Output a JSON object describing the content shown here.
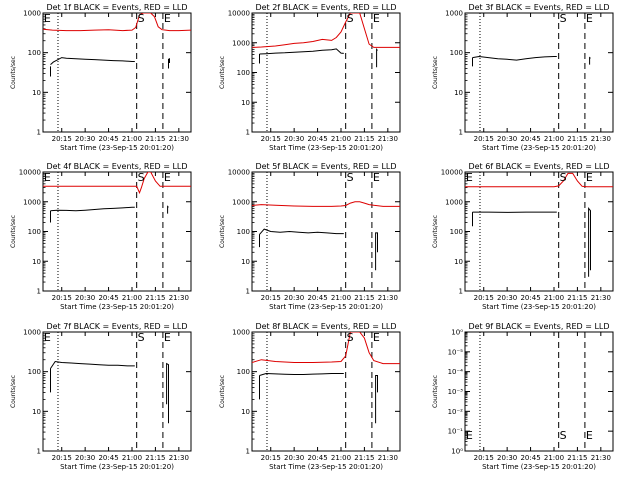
{
  "figure": {
    "background": "#ffffff",
    "axis_color": "#000000"
  },
  "chart_data": [
    {
      "type": "line",
      "title": "Det 1f BLACK = Events, RED = LLD",
      "xlabel": "Start Time (23-Sep-15 20:01:20)",
      "ylabel": "Counts/sec",
      "yscale": "log",
      "ylim": [
        1,
        1000
      ],
      "yticks": [
        "1",
        "10",
        "100",
        "1000"
      ],
      "xlim": [
        20.05,
        21.63
      ],
      "xticks": [
        "20:15",
        "20:30",
        "20:45",
        "21:00",
        "21:15",
        "21:30"
      ],
      "markers": {
        "dotted": [
          20.21
        ],
        "dashed": [
          21.05,
          21.33
        ]
      },
      "annotations": [
        {
          "text": "E",
          "x": 20.06
        },
        {
          "text": "S",
          "x": 21.06
        },
        {
          "text": "E",
          "x": 21.34
        }
      ],
      "series": [
        {
          "color": "#dd0000",
          "x": [
            20.05,
            20.15,
            20.3,
            20.45,
            20.6,
            20.75,
            20.9,
            21.0,
            21.04,
            21.08,
            21.12,
            21.16,
            21.2,
            21.24,
            21.28,
            21.32,
            21.36,
            21.4,
            21.5,
            21.63
          ],
          "y": [
            390,
            370,
            360,
            360,
            370,
            380,
            360,
            370,
            430,
            900,
            1000,
            1000,
            1000,
            800,
            450,
            380,
            370,
            360,
            360,
            370
          ]
        },
        {
          "color": "#000000",
          "x": [
            20.13,
            20.13
          ],
          "y": [
            25,
            45
          ]
        },
        {
          "color": "#000000",
          "x": [
            20.13,
            20.16,
            20.2,
            20.25,
            20.3,
            20.4,
            20.5,
            20.6,
            20.7,
            20.8,
            20.9,
            21.0,
            21.03
          ],
          "y": [
            50,
            58,
            65,
            75,
            72,
            70,
            68,
            67,
            65,
            63,
            62,
            60,
            60
          ]
        },
        {
          "color": "#000000",
          "x": [
            21.39,
            21.39,
            21.4,
            21.4
          ],
          "y": [
            40,
            68,
            70,
            55
          ]
        }
      ]
    },
    {
      "type": "line",
      "title": "Det 2f BLACK = Events, RED = LLD",
      "xlabel": "Start Time (23-Sep-15 20:01:20)",
      "ylabel": "Counts/sec",
      "yscale": "log",
      "ylim": [
        1,
        10000
      ],
      "yticks": [
        "1",
        "10",
        "100",
        "1000",
        "10000"
      ],
      "xlim": [
        20.05,
        21.63
      ],
      "xticks": [
        "20:15",
        "20:30",
        "20:45",
        "21:00",
        "21:15",
        "21:30"
      ],
      "markers": {
        "dotted": [
          20.21
        ],
        "dashed": [
          21.05,
          21.33
        ]
      },
      "annotations": [
        {
          "text": "S",
          "x": 21.06
        },
        {
          "text": "E",
          "x": 21.34
        }
      ],
      "series": [
        {
          "color": "#dd0000",
          "x": [
            20.05,
            20.15,
            20.3,
            20.4,
            20.5,
            20.6,
            20.7,
            20.8,
            20.9,
            20.95,
            21.0,
            21.05,
            21.1,
            21.15,
            21.2,
            21.25,
            21.3,
            21.35,
            21.45,
            21.63
          ],
          "y": [
            700,
            720,
            780,
            850,
            950,
            1000,
            1100,
            1300,
            1200,
            1500,
            2300,
            5000,
            10000,
            10000,
            10000,
            3000,
            900,
            700,
            700,
            700
          ]
        },
        {
          "color": "#000000",
          "x": [
            20.13,
            20.13
          ],
          "y": [
            200,
            420
          ]
        },
        {
          "color": "#000000",
          "x": [
            20.13,
            20.2,
            20.3,
            20.4,
            20.5,
            20.6,
            20.7,
            20.8,
            20.9,
            20.95,
            21.0,
            21.03
          ],
          "y": [
            420,
            430,
            450,
            460,
            480,
            500,
            520,
            560,
            580,
            620,
            450,
            440
          ]
        },
        {
          "color": "#000000",
          "x": [
            21.38,
            21.38,
            21.39
          ],
          "y": [
            150,
            600,
            550
          ]
        }
      ]
    },
    {
      "type": "line",
      "title": "Det 3f BLACK = Events, RED = LLD",
      "xlabel": "Start Time (23-Sep-15 20:01:20)",
      "ylabel": "Counts/sec",
      "yscale": "log",
      "ylim": [
        1,
        1000
      ],
      "yticks": [
        "1",
        "10",
        "100",
        "1000"
      ],
      "xlim": [
        20.05,
        21.63
      ],
      "xticks": [
        "20:15",
        "20:30",
        "20:45",
        "21:00",
        "21:15",
        "21:30"
      ],
      "markers": {
        "dotted": [
          20.21
        ],
        "dashed": [
          21.05,
          21.33
        ]
      },
      "annotations": [
        {
          "text": "S",
          "x": 21.06
        },
        {
          "text": "E",
          "x": 21.34
        }
      ],
      "series": [
        {
          "color": "#000000",
          "x": [
            20.13,
            20.13
          ],
          "y": [
            45,
            75
          ]
        },
        {
          "color": "#000000",
          "x": [
            20.13,
            20.2,
            20.3,
            20.4,
            20.5,
            20.6,
            20.7,
            20.8,
            20.9,
            21.0,
            21.03
          ],
          "y": [
            75,
            80,
            75,
            70,
            68,
            65,
            70,
            75,
            78,
            80,
            80
          ]
        },
        {
          "color": "#000000",
          "x": [
            21.38,
            21.38,
            21.39
          ],
          "y": [
            50,
            75,
            72
          ]
        }
      ]
    },
    {
      "type": "line",
      "title": "Det 4f BLACK = Events, RED = LLD",
      "xlabel": "Start Time (23-Sep-15 20:01:20)",
      "ylabel": "Counts/sec",
      "yscale": "log",
      "ylim": [
        1,
        10000
      ],
      "yticks": [
        "1",
        "10",
        "100",
        "1000",
        "10000"
      ],
      "xlim": [
        20.05,
        21.63
      ],
      "xticks": [
        "20:15",
        "20:30",
        "20:45",
        "21:00",
        "21:15",
        "21:30"
      ],
      "markers": {
        "dotted": [
          20.21
        ],
        "dashed": [
          21.05,
          21.33
        ]
      },
      "annotations": [
        {
          "text": "E",
          "x": 20.06
        },
        {
          "text": "S",
          "x": 21.06
        },
        {
          "text": "E",
          "x": 21.34
        }
      ],
      "series": [
        {
          "color": "#dd0000",
          "x": [
            20.05,
            20.3,
            20.6,
            20.9,
            21.0,
            21.05,
            21.08,
            21.1,
            21.13,
            21.17,
            21.2,
            21.25,
            21.3,
            21.4,
            21.63
          ],
          "y": [
            3300,
            3300,
            3300,
            3300,
            3300,
            3300,
            2000,
            3000,
            6000,
            10000,
            10000,
            5000,
            3300,
            3300,
            3300
          ]
        },
        {
          "color": "#000000",
          "x": [
            20.13,
            20.13
          ],
          "y": [
            200,
            500
          ]
        },
        {
          "color": "#000000",
          "x": [
            20.13,
            20.2,
            20.3,
            20.4,
            20.5,
            20.6,
            20.7,
            20.8,
            20.9,
            21.0,
            21.03
          ],
          "y": [
            500,
            520,
            510,
            500,
            520,
            550,
            580,
            600,
            620,
            650,
            650
          ]
        },
        {
          "color": "#000000",
          "x": [
            21.38,
            21.38,
            21.39
          ],
          "y": [
            400,
            700,
            650
          ]
        }
      ]
    },
    {
      "type": "line",
      "title": "Det 5f BLACK = Events, RED = LLD",
      "xlabel": "Start Time (23-Sep-15 20:01:20)",
      "ylabel": "Counts/sec",
      "yscale": "log",
      "ylim": [
        1,
        10000
      ],
      "yticks": [
        "1",
        "10",
        "100",
        "1000",
        "10000"
      ],
      "xlim": [
        20.05,
        21.63
      ],
      "xticks": [
        "20:15",
        "20:30",
        "20:45",
        "21:00",
        "21:15",
        "21:30"
      ],
      "markers": {
        "dotted": [
          20.21
        ],
        "dashed": [
          21.05,
          21.33
        ]
      },
      "annotations": [
        {
          "text": "S",
          "x": 21.06
        },
        {
          "text": "E",
          "x": 21.34
        }
      ],
      "series": [
        {
          "color": "#dd0000",
          "x": [
            20.05,
            20.15,
            20.3,
            20.5,
            20.7,
            20.9,
            21.0,
            21.05,
            21.1,
            21.15,
            21.2,
            21.25,
            21.3,
            21.35,
            21.45,
            21.63
          ],
          "y": [
            750,
            800,
            760,
            720,
            700,
            700,
            720,
            750,
            900,
            1000,
            1000,
            900,
            800,
            760,
            700,
            700
          ]
        },
        {
          "color": "#000000",
          "x": [
            20.13,
            20.13
          ],
          "y": [
            30,
            80
          ]
        },
        {
          "color": "#000000",
          "x": [
            20.13,
            20.18,
            20.25,
            20.35,
            20.45,
            20.55,
            20.65,
            20.75,
            20.85,
            20.95,
            21.03
          ],
          "y": [
            80,
            120,
            100,
            95,
            100,
            95,
            90,
            95,
            90,
            85,
            85
          ]
        },
        {
          "color": "#000000",
          "x": [
            21.37,
            21.37,
            21.39,
            21.39
          ],
          "y": [
            5,
            90,
            90,
            20
          ]
        }
      ]
    },
    {
      "type": "line",
      "title": "Det 6f BLACK = Events, RED = LLD",
      "xlabel": "Start Time (23-Sep-15 20:01:20)",
      "ylabel": "Counts/sec",
      "yscale": "log",
      "ylim": [
        1,
        10000
      ],
      "yticks": [
        "1",
        "10",
        "100",
        "1000",
        "10000"
      ],
      "xlim": [
        20.05,
        21.63
      ],
      "xticks": [
        "20:15",
        "20:30",
        "20:45",
        "21:00",
        "21:15",
        "21:30"
      ],
      "markers": {
        "dotted": [
          20.21
        ],
        "dashed": [
          21.05,
          21.33
        ]
      },
      "annotations": [
        {
          "text": "E",
          "x": 20.06
        },
        {
          "text": "S",
          "x": 21.06
        },
        {
          "text": "E",
          "x": 21.34
        }
      ],
      "series": [
        {
          "color": "#dd0000",
          "x": [
            20.05,
            20.5,
            21.0,
            21.05,
            21.1,
            21.15,
            21.2,
            21.25,
            21.3,
            21.35,
            21.63
          ],
          "y": [
            3200,
            3200,
            3200,
            3400,
            5000,
            9000,
            9000,
            5000,
            3300,
            3200,
            3200
          ]
        },
        {
          "color": "#000000",
          "x": [
            20.13,
            20.13
          ],
          "y": [
            150,
            450
          ]
        },
        {
          "color": "#000000",
          "x": [
            20.13,
            20.3,
            20.5,
            20.7,
            20.9,
            21.03
          ],
          "y": [
            450,
            450,
            440,
            450,
            450,
            450
          ]
        },
        {
          "color": "#000000",
          "x": [
            21.37,
            21.37,
            21.39,
            21.39
          ],
          "y": [
            3,
            600,
            500,
            5
          ]
        }
      ]
    },
    {
      "type": "line",
      "title": "Det 7f BLACK = Events, RED = LLD",
      "xlabel": "Start Time (23-Sep-15 20:01:20)",
      "ylabel": "Counts/sec",
      "yscale": "log",
      "ylim": [
        1,
        1000
      ],
      "yticks": [
        "1",
        "10",
        "100",
        "1000"
      ],
      "xlim": [
        20.05,
        21.63
      ],
      "xticks": [
        "20:15",
        "20:30",
        "20:45",
        "21:00",
        "21:15",
        "21:30"
      ],
      "markers": {
        "dotted": [
          20.21
        ],
        "dashed": [
          21.05,
          21.33
        ]
      },
      "annotations": [
        {
          "text": "E",
          "x": 20.06
        },
        {
          "text": "S",
          "x": 21.06
        },
        {
          "text": "E",
          "x": 21.34
        }
      ],
      "series": [
        {
          "color": "#000000",
          "x": [
            20.13,
            20.13
          ],
          "y": [
            30,
            120
          ]
        },
        {
          "color": "#000000",
          "x": [
            20.13,
            20.18,
            20.25,
            20.35,
            20.45,
            20.55,
            20.65,
            20.75,
            20.85,
            20.95,
            21.03
          ],
          "y": [
            120,
            180,
            170,
            165,
            160,
            155,
            150,
            145,
            145,
            140,
            140
          ]
        },
        {
          "color": "#000000",
          "x": [
            21.37,
            21.37,
            21.39,
            21.39
          ],
          "y": [
            15,
            160,
            150,
            5
          ]
        }
      ]
    },
    {
      "type": "line",
      "title": "Det 8f BLACK = Events, RED = LLD",
      "xlabel": "Start Time (23-Sep-15 20:01:20)",
      "ylabel": "Counts/sec",
      "yscale": "log",
      "ylim": [
        1,
        1000
      ],
      "yticks": [
        "1",
        "10",
        "100",
        "1000"
      ],
      "xlim": [
        20.05,
        21.63
      ],
      "xticks": [
        "20:15",
        "20:30",
        "20:45",
        "21:00",
        "21:15",
        "21:30"
      ],
      "markers": {
        "dotted": [
          20.21
        ],
        "dashed": [
          21.05,
          21.33
        ]
      },
      "annotations": [
        {
          "text": "S",
          "x": 21.06
        },
        {
          "text": "E",
          "x": 21.34
        }
      ],
      "series": [
        {
          "color": "#dd0000",
          "x": [
            20.05,
            20.15,
            20.3,
            20.5,
            20.7,
            20.9,
            21.0,
            21.05,
            21.1,
            21.15,
            21.2,
            21.25,
            21.3,
            21.35,
            21.45,
            21.63
          ],
          "y": [
            170,
            200,
            180,
            170,
            170,
            175,
            180,
            250,
            1000,
            1000,
            1000,
            700,
            300,
            190,
            160,
            160
          ]
        },
        {
          "color": "#000000",
          "x": [
            20.13,
            20.13
          ],
          "y": [
            20,
            80
          ]
        },
        {
          "color": "#000000",
          "x": [
            20.13,
            20.2,
            20.3,
            20.4,
            20.5,
            20.6,
            20.7,
            20.8,
            20.9,
            21.0,
            21.03
          ],
          "y": [
            80,
            90,
            88,
            86,
            85,
            85,
            87,
            88,
            90,
            90,
            90
          ]
        },
        {
          "color": "#000000",
          "x": [
            21.37,
            21.37,
            21.39,
            21.39
          ],
          "y": [
            5,
            80,
            80,
            30
          ]
        }
      ]
    },
    {
      "type": "line",
      "title": "Det 9f BLACK = Events, RED = LLD",
      "xlabel": "Start Time (23-Sep-15 20:01:20)",
      "ylabel": "Counts/sec",
      "yscale": "log",
      "ylim": [
        1,
        1000000
      ],
      "yticks": [
        "10⁰",
        "10⁻¹",
        "10⁻²",
        "10⁻³",
        "10⁻⁴",
        "10⁻⁵",
        "10⁰"
      ],
      "xlim": [
        20.05,
        21.63
      ],
      "xticks": [
        "20:15",
        "20:30",
        "20:45",
        "21:00",
        "21:15",
        "21:30"
      ],
      "markers": {
        "dotted": [
          20.21
        ],
        "dashed": [
          21.05,
          21.33
        ]
      },
      "annotations_bottom": true,
      "annotations": [
        {
          "text": "E",
          "x": 20.06
        },
        {
          "text": "S",
          "x": 21.06
        },
        {
          "text": "E",
          "x": 21.34
        }
      ],
      "series": []
    }
  ]
}
